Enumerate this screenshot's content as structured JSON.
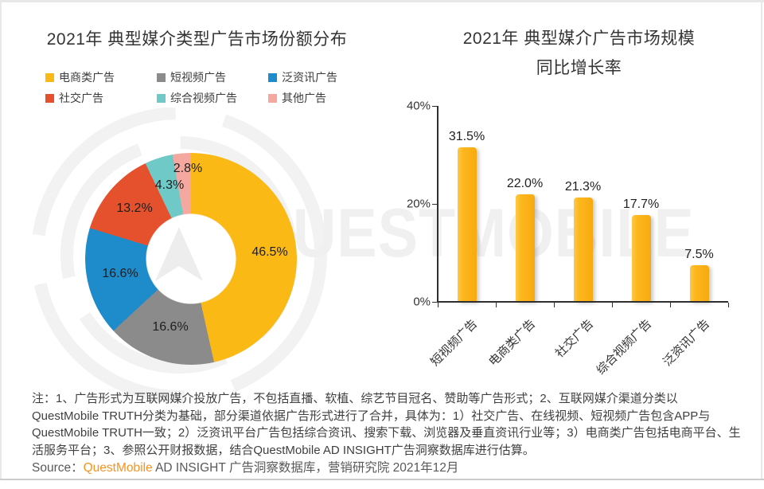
{
  "slide": {
    "left_title": "2021年 典型媒介类型广告市场份额分布",
    "right_title_line1": "2021年 典型媒介广告市场规模",
    "right_title_line2": "同比增长率",
    "watermark_text": "QUESTMOBILE",
    "note": "注：1、广告形式为互联网媒介投放广告，不包括直播、软植、综艺节目冠名、赞助等广告形式；2、互联网媒介渠道分类以QuestMobile TRUTH分类为基础，部分渠道依据广告形式进行了合并，具体为：1）社交广告、在线视频、短视频广告包含APP与QuestMobile TRUTH一致；2）泛资讯平台广告包括综合资讯、搜索下载、浏览器及垂直资讯行业等；3）电商类广告包括电商平台、生活服务平台；3、参照公开财报数据，结合QuestMobile AD INSIGHT广告洞察数据库进行估算。",
    "source_prefix": "Source：",
    "source_brand": "QuestMobile",
    "source_rest": " AD INSIGHT 广告洞察数据库，营销研究院 2021年12月"
  },
  "colors": {
    "ecommerce_yellow": "#fbb916",
    "short_video_gray": "#8b8b8b",
    "info_feed_blue": "#1e8bcb",
    "social_red": "#e5512d",
    "long_video_teal": "#6fc9c7",
    "other_pink": "#f4a8a0",
    "bar_yellow": "#fbb117",
    "brand_orange": "#f7941d",
    "watermark_gray": "#f0f0f0"
  },
  "chart_data": [
    {
      "type": "pie",
      "subtype": "donut",
      "title": "2021年 典型媒介类型广告市场份额分布",
      "labels": [
        "电商类广告",
        "短视频广告",
        "泛资讯广告",
        "社交广告",
        "综合视频广告",
        "其他广告"
      ],
      "values": [
        46.5,
        16.6,
        16.6,
        13.2,
        4.3,
        2.8
      ],
      "unit": "%",
      "colors": [
        "#fbb916",
        "#8b8b8b",
        "#1e8bcb",
        "#e5512d",
        "#6fc9c7",
        "#f4a8a0"
      ],
      "legend_position": "top",
      "start_angle_deg": 0,
      "direction": "clockwise"
    },
    {
      "type": "bar",
      "title": "2021年 典型媒介广告市场规模 同比增长率",
      "categories": [
        "短视频广告",
        "电商类广告",
        "社交广告",
        "综合视频广告",
        "泛资讯广告"
      ],
      "values": [
        31.5,
        22.0,
        21.3,
        17.7,
        7.5
      ],
      "unit": "%",
      "bar_color": "#fbb117",
      "xlabel": "",
      "ylabel": "",
      "ylim": [
        0,
        40
      ],
      "ytick_labels": [
        "0%",
        "20%",
        "40%"
      ],
      "ytick_values": [
        0,
        20,
        40
      ],
      "grid": false,
      "category_label_rotation_deg": 45
    }
  ]
}
